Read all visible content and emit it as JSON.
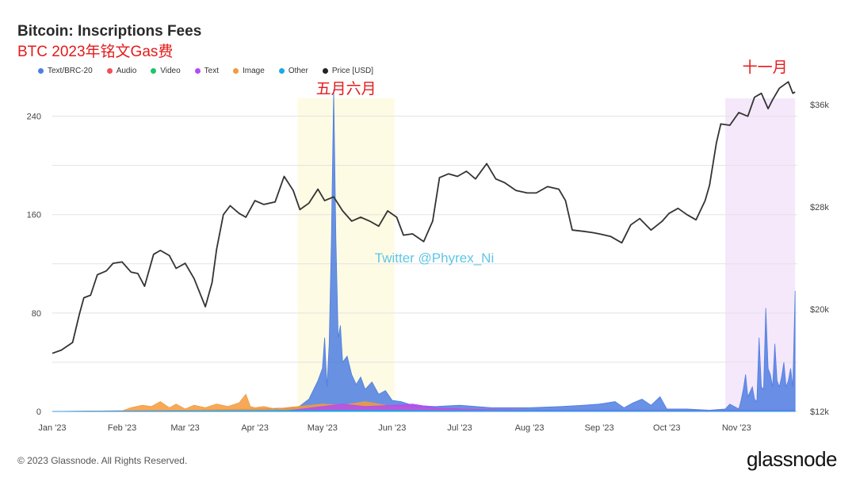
{
  "header": {
    "title": "Bitcoin: Inscriptions Fees",
    "subtitle": "BTC 2023年铭文Gas费"
  },
  "legend": [
    {
      "label": "Text/BRC-20",
      "color": "#4f7ee0"
    },
    {
      "label": "Audio",
      "color": "#f0505a"
    },
    {
      "label": "Video",
      "color": "#22c26e"
    },
    {
      "label": "Text",
      "color": "#b44cf0"
    },
    {
      "label": "Image",
      "color": "#f59a3c"
    },
    {
      "label": "Other",
      "color": "#1aa8e8"
    },
    {
      "label": "Price [USD]",
      "color": "#222222"
    }
  ],
  "annotations": {
    "may_june": "五月六月",
    "november": "十一月",
    "watermark": "Twitter @Phyrex_Ni"
  },
  "footer": {
    "copyright": "© 2023 Glassnode. All Rights Reserved.",
    "brand": "glassnode"
  },
  "chart_data": {
    "type": "area",
    "title": "Bitcoin: Inscriptions Fees",
    "x_ticks": [
      "Jan '23",
      "Feb '23",
      "Mar '23",
      "Apr '23",
      "May '23",
      "Jun '23",
      "Jul '23",
      "Aug '23",
      "Sep '23",
      "Oct '23",
      "Nov '23"
    ],
    "y_left": {
      "ticks": [
        "0",
        "80",
        "160",
        "240"
      ],
      "range": [
        0,
        270
      ]
    },
    "y_right": {
      "ticks": [
        "$12k",
        "$20k",
        "$28k",
        "$36k"
      ],
      "range": [
        12000,
        38000
      ],
      "unit": "USD"
    },
    "highlights": [
      {
        "label": "五月六月",
        "from": "2023-04-20",
        "to": "2023-06-02",
        "color": "#fdfbe3"
      },
      {
        "label": "十一月",
        "from": "2023-10-27",
        "to": "2023-11-27",
        "color": "#f5e8fb"
      }
    ],
    "series": [
      {
        "name": "Price [USD]",
        "axis": "right",
        "color": "#333333",
        "x": [
          "2023-01-01",
          "2023-01-05",
          "2023-01-10",
          "2023-01-13",
          "2023-01-15",
          "2023-01-18",
          "2023-01-21",
          "2023-01-25",
          "2023-01-28",
          "2023-02-01",
          "2023-02-05",
          "2023-02-08",
          "2023-02-11",
          "2023-02-15",
          "2023-02-18",
          "2023-02-22",
          "2023-02-25",
          "2023-03-01",
          "2023-03-05",
          "2023-03-10",
          "2023-03-13",
          "2023-03-15",
          "2023-03-18",
          "2023-03-21",
          "2023-03-25",
          "2023-03-28",
          "2023-04-01",
          "2023-04-05",
          "2023-04-10",
          "2023-04-14",
          "2023-04-18",
          "2023-04-21",
          "2023-04-25",
          "2023-04-29",
          "2023-05-02",
          "2023-05-06",
          "2023-05-10",
          "2023-05-14",
          "2023-05-18",
          "2023-05-22",
          "2023-05-26",
          "2023-05-30",
          "2023-06-03",
          "2023-06-06",
          "2023-06-10",
          "2023-06-15",
          "2023-06-19",
          "2023-06-22",
          "2023-06-26",
          "2023-06-30",
          "2023-07-04",
          "2023-07-08",
          "2023-07-13",
          "2023-07-17",
          "2023-07-21",
          "2023-07-26",
          "2023-07-31",
          "2023-08-04",
          "2023-08-09",
          "2023-08-14",
          "2023-08-17",
          "2023-08-20",
          "2023-08-25",
          "2023-08-29",
          "2023-09-01",
          "2023-09-06",
          "2023-09-11",
          "2023-09-15",
          "2023-09-19",
          "2023-09-24",
          "2023-09-29",
          "2023-10-02",
          "2023-10-06",
          "2023-10-10",
          "2023-10-14",
          "2023-10-18",
          "2023-10-20",
          "2023-10-23",
          "2023-10-25",
          "2023-10-29",
          "2023-11-02",
          "2023-11-06",
          "2023-11-09",
          "2023-11-12",
          "2023-11-15",
          "2023-11-17",
          "2023-11-20",
          "2023-11-24",
          "2023-11-26",
          "2023-11-27"
        ],
        "values": [
          16550,
          16800,
          17400,
          19600,
          20900,
          21100,
          22700,
          23000,
          23600,
          23700,
          22900,
          22800,
          21800,
          24300,
          24600,
          24200,
          23200,
          23600,
          22400,
          20200,
          22100,
          24700,
          27400,
          28100,
          27500,
          27200,
          28500,
          28200,
          28400,
          30400,
          29300,
          27800,
          28300,
          29400,
          28500,
          28800,
          27700,
          26900,
          27200,
          26900,
          26500,
          27700,
          27200,
          25800,
          25900,
          25300,
          26900,
          30300,
          30600,
          30400,
          30800,
          30200,
          31400,
          30200,
          29900,
          29300,
          29100,
          29100,
          29600,
          29400,
          28500,
          26200,
          26100,
          26000,
          25900,
          25700,
          25200,
          26600,
          27100,
          26200,
          26900,
          27500,
          27900,
          27400,
          27000,
          28500,
          29700,
          33000,
          34500,
          34400,
          35400,
          35100,
          36600,
          36900,
          35700,
          36400,
          37300,
          37800,
          36900,
          37000
        ]
      },
      {
        "name": "Text/BRC-20",
        "axis": "left",
        "color": "#4f7ee0",
        "x": [
          "2023-01-01",
          "2023-02-01",
          "2023-03-01",
          "2023-04-01",
          "2023-04-20",
          "2023-04-25",
          "2023-04-29",
          "2023-05-01",
          "2023-05-02",
          "2023-05-03",
          "2023-05-04",
          "2023-05-05",
          "2023-05-06",
          "2023-05-07",
          "2023-05-08",
          "2023-05-09",
          "2023-05-10",
          "2023-05-12",
          "2023-05-14",
          "2023-05-16",
          "2023-05-18",
          "2023-05-20",
          "2023-05-23",
          "2023-05-26",
          "2023-05-29",
          "2023-06-01",
          "2023-06-05",
          "2023-06-10",
          "2023-06-20",
          "2023-07-01",
          "2023-07-15",
          "2023-08-01",
          "2023-08-15",
          "2023-08-25",
          "2023-09-01",
          "2023-09-08",
          "2023-09-12",
          "2023-09-16",
          "2023-09-20",
          "2023-09-24",
          "2023-09-28",
          "2023-10-01",
          "2023-10-10",
          "2023-10-20",
          "2023-10-27",
          "2023-10-29",
          "2023-11-01",
          "2023-11-02",
          "2023-11-03",
          "2023-11-04",
          "2023-11-05",
          "2023-11-06",
          "2023-11-07",
          "2023-11-08",
          "2023-11-09",
          "2023-11-10",
          "2023-11-11",
          "2023-11-12",
          "2023-11-13",
          "2023-11-14",
          "2023-11-15",
          "2023-11-16",
          "2023-11-17",
          "2023-11-18",
          "2023-11-19",
          "2023-11-20",
          "2023-11-21",
          "2023-11-22",
          "2023-11-23",
          "2023-11-24",
          "2023-11-25",
          "2023-11-26",
          "2023-11-27"
        ],
        "values": [
          0,
          0.5,
          1,
          2,
          3,
          10,
          25,
          35,
          60,
          20,
          55,
          140,
          262,
          140,
          60,
          70,
          40,
          45,
          30,
          22,
          28,
          18,
          24,
          14,
          17,
          9,
          8,
          5,
          4,
          5,
          3,
          3,
          4,
          5,
          6,
          8,
          3,
          7,
          10,
          5,
          12,
          2,
          2,
          1,
          2,
          6,
          3,
          2,
          9,
          18,
          30,
          12,
          16,
          20,
          10,
          8,
          60,
          20,
          18,
          84,
          35,
          30,
          20,
          55,
          25,
          20,
          28,
          40,
          20,
          25,
          35,
          20,
          98
        ]
      },
      {
        "name": "Image",
        "axis": "left",
        "color": "#f59a3c",
        "x": [
          "2023-01-01",
          "2023-02-01",
          "2023-02-05",
          "2023-02-10",
          "2023-02-14",
          "2023-02-18",
          "2023-02-22",
          "2023-02-25",
          "2023-03-01",
          "2023-03-05",
          "2023-03-10",
          "2023-03-15",
          "2023-03-20",
          "2023-03-25",
          "2023-03-28",
          "2023-03-30",
          "2023-04-01",
          "2023-04-05",
          "2023-04-10",
          "2023-04-15",
          "2023-04-20",
          "2023-05-01",
          "2023-05-10",
          "2023-05-20",
          "2023-06-01",
          "2023-06-10",
          "2023-06-20",
          "2023-07-01",
          "2023-08-01",
          "2023-09-01",
          "2023-10-01",
          "2023-11-01",
          "2023-11-27"
        ],
        "values": [
          0,
          0.5,
          3,
          5,
          4,
          8,
          3,
          6,
          2,
          5,
          3,
          6,
          4,
          7,
          14,
          4,
          3,
          4,
          2,
          3,
          4,
          6,
          5,
          8,
          4,
          3,
          2,
          2,
          1,
          1,
          1,
          1,
          1
        ]
      },
      {
        "name": "Text",
        "axis": "left",
        "color": "#b44cf0",
        "x": [
          "2023-01-01",
          "2023-04-15",
          "2023-05-01",
          "2023-05-10",
          "2023-05-20",
          "2023-06-01",
          "2023-06-10",
          "2023-06-20",
          "2023-07-01",
          "2023-08-01",
          "2023-09-01",
          "2023-10-01",
          "2023-11-01",
          "2023-11-27"
        ],
        "values": [
          0,
          0.5,
          4,
          6,
          4,
          5,
          6,
          3,
          2,
          1,
          1,
          1,
          1,
          1
        ]
      },
      {
        "name": "Other",
        "axis": "left",
        "color": "#1aa8e8",
        "x": [
          "2023-01-01",
          "2023-04-01",
          "2023-05-05",
          "2023-06-01",
          "2023-07-01",
          "2023-11-27"
        ],
        "values": [
          0,
          0.5,
          1,
          1,
          0.5,
          0.5
        ]
      }
    ]
  }
}
